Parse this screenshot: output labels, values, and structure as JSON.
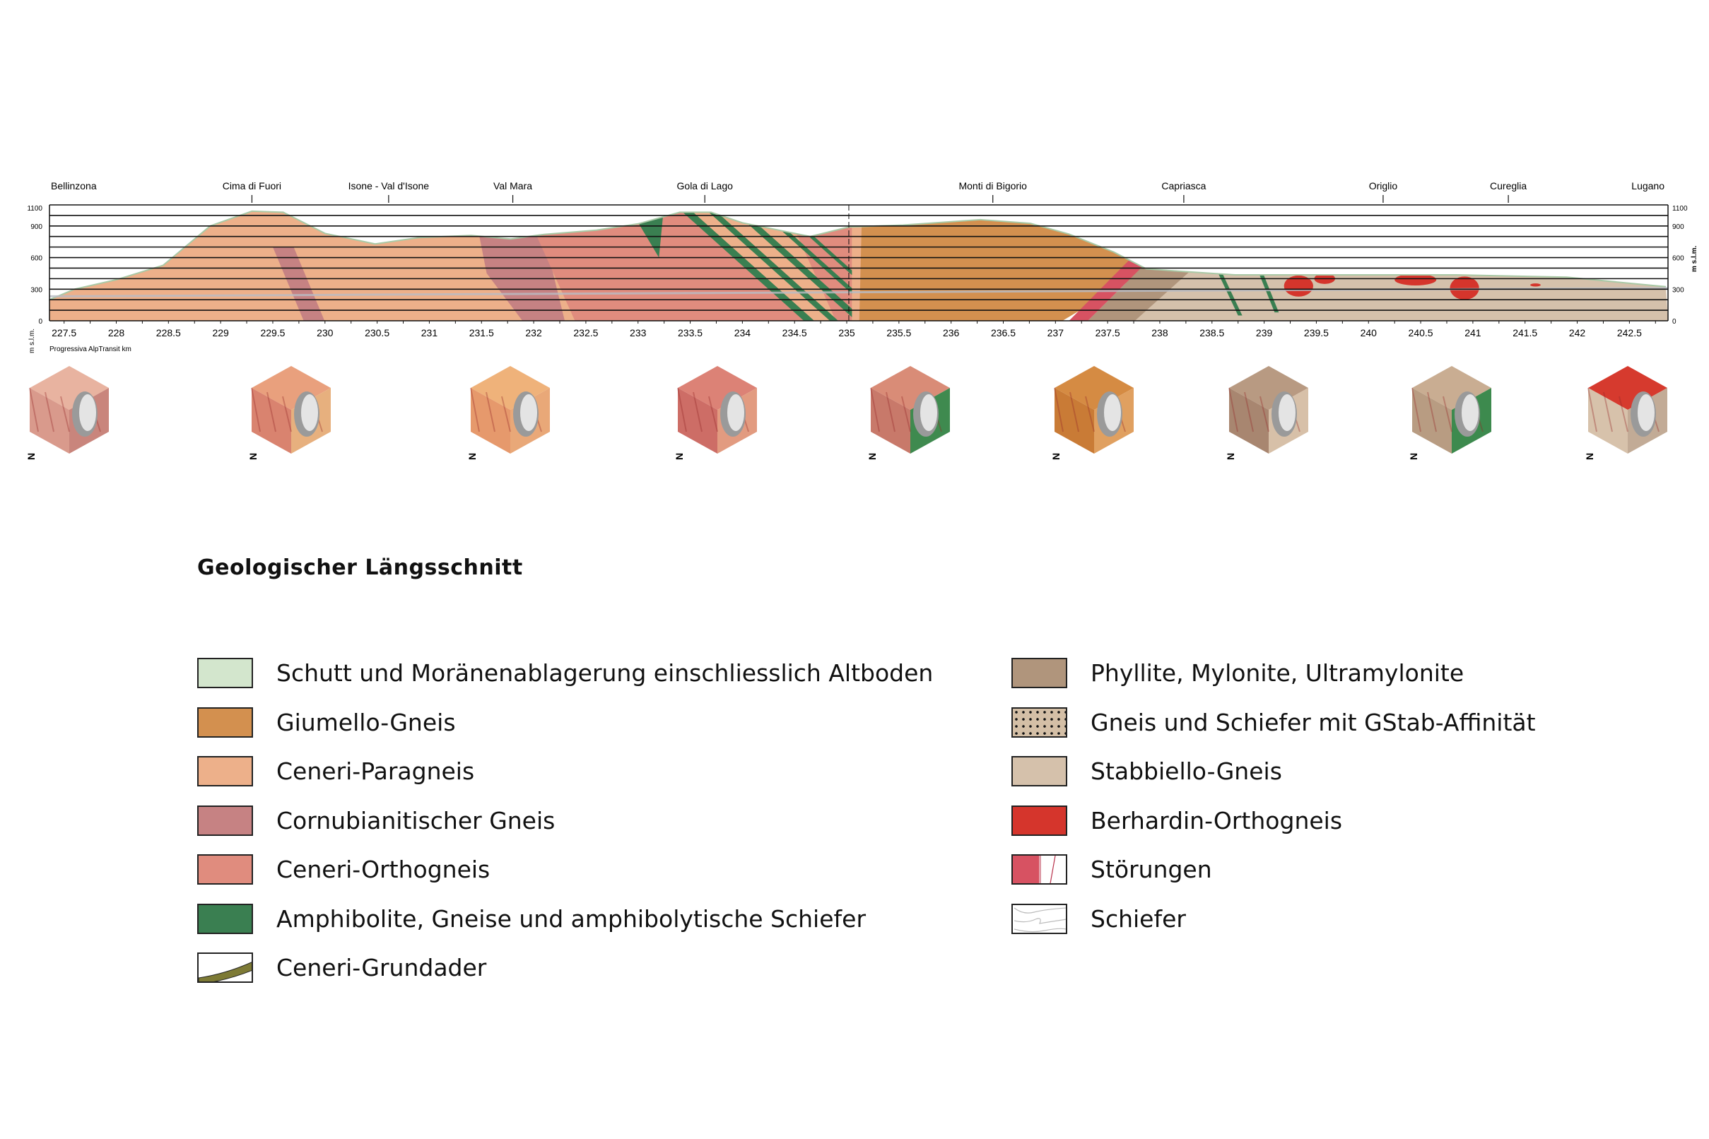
{
  "chart_data": {
    "type": "area",
    "title": "",
    "xlabel": "Progressiva AlpTransit km",
    "ylabel": "m s.l.m.",
    "xlim": [
      227.36,
      242.87
    ],
    "ylim": [
      0,
      1100
    ],
    "x_ticks": [
      "227.5",
      "228",
      "228.5",
      "229",
      "229.5",
      "230",
      "230.5",
      "231",
      "231.5",
      "232",
      "232.5",
      "233",
      "233.5",
      "234",
      "234.5",
      "235",
      "235.5",
      "236",
      "236.5",
      "237",
      "237.5",
      "238",
      "238.5",
      "239",
      "239.5",
      "240",
      "240.5",
      "241",
      "241.5",
      "242",
      "242.5"
    ],
    "y_ticks": [
      "1100",
      "900",
      "600",
      "300",
      "0"
    ],
    "grid": "horizontal every 100 m",
    "locations": [
      {
        "name": "Bellinzona",
        "km": 227.6
      },
      {
        "name": "Cima di Fuori",
        "km": 229.3
      },
      {
        "name": "Isone - Val d'Isone",
        "km": 230.61
      },
      {
        "name": "Val Mara",
        "km": 231.8
      },
      {
        "name": "Gola di Lago",
        "km": 233.64
      },
      {
        "name": "Monti di Bigorio",
        "km": 236.4
      },
      {
        "name": "Capriasca",
        "km": 238.23
      },
      {
        "name": "Origlio",
        "km": 240.14
      },
      {
        "name": "Cureglia",
        "km": 241.34
      },
      {
        "name": "Lugano",
        "km": 242.7
      }
    ],
    "terrain_profile": {
      "km": [
        227.36,
        227.6,
        228.0,
        228.45,
        228.9,
        229.3,
        229.6,
        230.0,
        230.48,
        230.9,
        231.4,
        231.78,
        232.1,
        232.6,
        233.0,
        233.4,
        233.7,
        234.0,
        234.65,
        235.02,
        235.54,
        236.28,
        236.76,
        237.13,
        237.56,
        237.87,
        238.19,
        238.72,
        239.78,
        240.84,
        241.9,
        242.85
      ],
      "elevation_m": [
        200,
        300,
        390,
        527,
        900,
        1040,
        1030,
        830,
        730,
        790,
        810,
        777,
        820,
        860,
        920,
        1030,
        1030,
        930,
        800,
        890,
        909,
        960,
        925,
        823,
        652,
        493,
        470,
        436,
        436,
        436,
        414,
        323
      ]
    },
    "tunnel": {
      "km": [
        227.36,
        242.87
      ],
      "elevation_m": [
        232,
        310
      ]
    },
    "geology_zones": [
      {
        "unit": "Ceneri-Paragneis",
        "from_km": 227.36,
        "to_km": 231.5
      },
      {
        "unit": "Cornubianitischer Gneis",
        "from_km": 231.5,
        "to_km": 231.8
      },
      {
        "unit": "Ceneri-Orthogneis",
        "from_km": 231.8,
        "to_km": 233.2
      },
      {
        "unit": "Amphibolite, Gneise und amphibolytische Schiefer",
        "from_km": 233.2,
        "to_km": 235.0
      },
      {
        "unit": "Giumello-Gneis",
        "from_km": 235.1,
        "to_km": 237.3
      },
      {
        "unit": "Phyllite, Mylonite, Ultramylonite",
        "from_km": 237.3,
        "to_km": 238.0
      },
      {
        "unit": "Stabbiello-Gneis",
        "from_km": 238.0,
        "to_km": 242.87
      },
      {
        "unit": "Berhardin-Orthogneis",
        "from_km": 239.2,
        "to_km": 241.0
      }
    ]
  },
  "blocks": [
    {
      "name": "block-1",
      "colors": [
        "#e8b3a0",
        "#d99a8c",
        "#c9857c"
      ]
    },
    {
      "name": "block-2",
      "colors": [
        "#e9a07d",
        "#d9836f",
        "#e7b07e"
      ]
    },
    {
      "name": "block-3",
      "colors": [
        "#efb27a",
        "#e6996c",
        "#e9a878"
      ]
    },
    {
      "name": "block-4",
      "colors": [
        "#dc8276",
        "#cd6d66",
        "#e29b80"
      ]
    },
    {
      "name": "block-5",
      "colors": [
        "#d98c77",
        "#c8796a",
        "#3f8a4f"
      ]
    },
    {
      "name": "block-6",
      "colors": [
        "#d58b43",
        "#c97b36",
        "#e0a060"
      ]
    },
    {
      "name": "block-7",
      "colors": [
        "#b89a82",
        "#a88670",
        "#d7c0a8"
      ]
    },
    {
      "name": "block-8",
      "colors": [
        "#c9ad92",
        "#b89c82",
        "#3d8a4e"
      ]
    },
    {
      "name": "block-9",
      "colors": [
        "#d63a2e",
        "#d7c2ab",
        "#c2ab96"
      ]
    }
  ],
  "north_label": "N",
  "legend": {
    "title": "Geologischer Längsschnitt",
    "left": [
      {
        "label": "Schutt und Moränenablagerung einschliesslich Altboden",
        "color": "#d3e6cd",
        "pattern": "solid"
      },
      {
        "label": "Giumello-Gneis",
        "color": "#d3904f",
        "pattern": "solid"
      },
      {
        "label": "Ceneri-Paragneis",
        "color": "#edb08a",
        "pattern": "solid"
      },
      {
        "label": "Cornubianitischer Gneis",
        "color": "#c68283",
        "pattern": "solid"
      },
      {
        "label": "Ceneri-Orthogneis",
        "color": "#e08c7e",
        "pattern": "solid"
      },
      {
        "label": "Amphibolite, Gneise und amphibolytische Schiefer",
        "color": "#3a7f51",
        "pattern": "solid"
      },
      {
        "label": "Ceneri-Grundader",
        "color": "#7d7a35",
        "pattern": "band"
      }
    ],
    "right": [
      {
        "label": "Phyllite, Mylonite, Ultramylonite",
        "color": "#b0957c",
        "pattern": "solid"
      },
      {
        "label": "Gneis und Schiefer mit GStab-Affinität",
        "color": "#d4bfa6",
        "pattern": "dots"
      },
      {
        "label": "Stabbiello-Gneis",
        "color": "#d5c1ab",
        "pattern": "solid"
      },
      {
        "label": "Berhardin-Orthogneis",
        "color": "#d5352c",
        "pattern": "solid"
      },
      {
        "label": "Störungen",
        "color": "#d75262",
        "pattern": "fault"
      },
      {
        "label": "Schiefer",
        "color": "#ffffff",
        "pattern": "schist"
      }
    ]
  }
}
